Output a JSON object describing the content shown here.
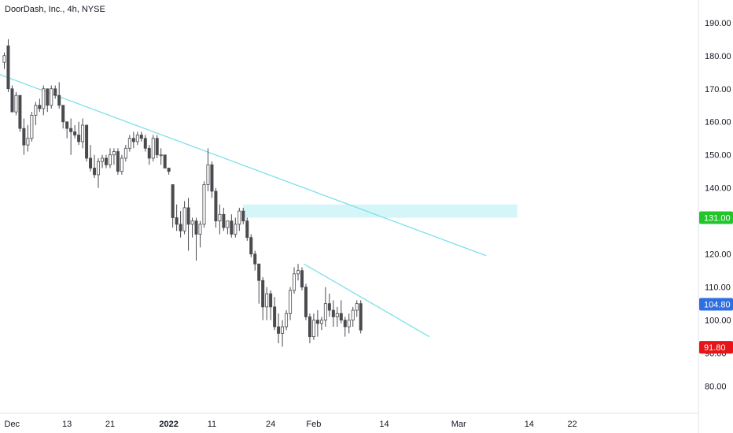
{
  "header": {
    "title": "DoorDash, Inc., 4h, NYSE"
  },
  "colors": {
    "candle_up": "#ffffff",
    "candle_down": "#4a4a4f",
    "wick": "#4a4a4f",
    "trendline": "#7fdfe8",
    "zone": "#d5f6f8",
    "tag_green": "#22c62b",
    "tag_blue": "#2f6fe0",
    "tag_red": "#e81417"
  },
  "chart_data": {
    "type": "candlestick",
    "ylim": [
      73,
      194
    ],
    "x_ticks": [
      {
        "label": "Dec",
        "i": 0
      },
      {
        "label": "13",
        "i": 16
      },
      {
        "label": "21",
        "i": 27
      },
      {
        "label": "2022",
        "i": 42
      },
      {
        "label": "11",
        "i": 53
      },
      {
        "label": "24",
        "i": 68
      },
      {
        "label": "Feb",
        "i": 79
      },
      {
        "label": "14",
        "i": 97
      },
      {
        "label": "Mar",
        "i": 116
      },
      {
        "label": "14",
        "i": 134
      },
      {
        "label": "22",
        "i": 145
      }
    ],
    "y_ticks": [
      190,
      180,
      170,
      160,
      150,
      140,
      130,
      120,
      110,
      100,
      90,
      80
    ],
    "y_tick_labels": [
      "190.00",
      "180.00",
      "170.00",
      "160.00",
      "150.00",
      "140.00",
      "130.00",
      "120.00",
      "110.00",
      "100.00",
      "90.00",
      "80.00"
    ],
    "candles": [
      [
        178,
        181,
        176,
        180
      ],
      [
        183,
        185,
        169,
        170
      ],
      [
        170,
        171,
        163,
        163
      ],
      [
        163,
        169,
        162,
        168
      ],
      [
        168,
        168,
        157,
        158
      ],
      [
        158,
        161,
        150,
        153
      ],
      [
        153,
        159,
        151,
        155
      ],
      [
        155,
        163,
        154,
        162
      ],
      [
        162,
        166,
        159,
        165
      ],
      [
        165,
        167,
        163,
        164
      ],
      [
        164,
        171,
        162,
        170
      ],
      [
        170,
        170,
        163,
        165
      ],
      [
        165,
        171,
        164,
        170
      ],
      [
        170,
        171,
        167,
        168
      ],
      [
        168,
        172,
        164,
        165
      ],
      [
        165,
        165,
        158,
        160
      ],
      [
        160,
        160,
        155,
        158
      ],
      [
        158,
        161,
        150,
        157
      ],
      [
        157,
        159,
        155,
        156
      ],
      [
        156,
        160,
        153,
        154
      ],
      [
        154,
        161,
        152,
        159
      ],
      [
        159,
        159,
        148,
        149
      ],
      [
        149,
        153,
        145,
        146
      ],
      [
        146,
        150,
        143,
        144
      ],
      [
        144,
        149,
        140,
        148
      ],
      [
        148,
        150,
        146,
        149
      ],
      [
        149,
        150,
        146,
        147
      ],
      [
        147,
        152,
        146,
        150
      ],
      [
        150,
        152,
        147,
        151
      ],
      [
        151,
        152,
        144,
        145
      ],
      [
        145,
        150,
        144,
        149
      ],
      [
        149,
        153,
        148,
        152
      ],
      [
        152,
        156,
        151,
        155
      ],
      [
        155,
        157,
        152,
        154
      ],
      [
        154,
        157,
        153,
        156
      ],
      [
        156,
        157,
        154,
        155
      ],
      [
        155,
        156,
        151,
        152
      ],
      [
        152,
        153,
        147,
        149
      ],
      [
        149,
        156,
        148,
        155
      ],
      [
        155,
        156,
        149,
        150
      ],
      [
        150,
        152,
        147,
        150
      ],
      [
        150,
        150,
        146,
        146
      ],
      [
        146,
        146,
        144,
        145
      ],
      [
        141,
        141,
        128,
        131
      ],
      [
        131,
        135,
        127,
        129
      ],
      [
        129,
        133,
        125,
        127
      ],
      [
        127,
        136,
        126,
        134
      ],
      [
        134,
        137,
        121,
        129
      ],
      [
        129,
        131,
        125,
        130
      ],
      [
        130,
        131,
        118,
        126
      ],
      [
        126,
        130,
        122,
        129
      ],
      [
        129,
        142,
        128,
        141
      ],
      [
        141,
        152,
        139,
        147
      ],
      [
        147,
        148,
        137,
        139
      ],
      [
        139,
        140,
        128,
        130
      ],
      [
        130,
        135,
        126,
        132
      ],
      [
        132,
        134,
        127,
        128
      ],
      [
        128,
        130,
        126,
        130
      ],
      [
        130,
        132,
        125,
        126
      ],
      [
        126,
        131,
        125,
        129
      ],
      [
        129,
        134,
        127,
        133
      ],
      [
        133,
        134,
        129,
        130
      ],
      [
        130,
        131,
        124,
        125
      ],
      [
        125,
        126,
        119,
        120
      ],
      [
        120,
        121,
        115,
        117
      ],
      [
        117,
        117,
        105,
        112
      ],
      [
        112,
        113,
        100,
        104
      ],
      [
        104,
        110,
        100,
        108
      ],
      [
        108,
        109,
        100,
        104
      ],
      [
        104,
        107,
        97,
        98
      ],
      [
        98,
        102,
        93,
        96
      ],
      [
        96,
        100,
        92,
        98
      ],
      [
        98,
        103,
        97,
        102
      ],
      [
        102,
        110,
        100,
        109
      ],
      [
        109,
        116,
        108,
        114
      ],
      [
        114,
        117,
        112,
        115
      ],
      [
        115,
        116,
        109,
        110
      ],
      [
        110,
        111,
        100,
        101
      ],
      [
        101,
        102,
        93,
        95
      ],
      [
        95,
        102,
        94,
        100
      ],
      [
        100,
        103,
        95,
        99
      ],
      [
        99,
        101,
        97,
        100
      ],
      [
        100,
        110,
        98,
        105
      ],
      [
        105,
        108,
        101,
        103
      ],
      [
        103,
        106,
        98,
        101
      ],
      [
        101,
        104,
        98,
        102
      ],
      [
        102,
        106,
        99,
        100
      ],
      [
        100,
        101,
        95,
        98
      ],
      [
        98,
        102,
        96,
        100
      ],
      [
        100,
        104,
        98,
        103
      ],
      [
        103,
        106,
        101,
        105
      ],
      [
        105,
        106,
        96,
        97
      ]
    ],
    "trendlines": [
      {
        "from": {
          "i": -1.6,
          "y": 174.5
        },
        "to": {
          "i": 123,
          "y": 119.5
        }
      },
      {
        "from": {
          "i": 76.5,
          "y": 117
        },
        "to": {
          "i": 108.5,
          "y": 95
        }
      }
    ],
    "zone": {
      "from_i": 61,
      "to_i": 131,
      "y_low": 131,
      "y_high": 135
    },
    "price_tags": [
      {
        "value": 131.0,
        "label": "131.00",
        "color": "#22c62b"
      },
      {
        "value": 104.8,
        "label": "104.80",
        "color": "#2f6fe0"
      },
      {
        "value": 91.8,
        "label": "91.80",
        "color": "#e81417"
      }
    ]
  }
}
